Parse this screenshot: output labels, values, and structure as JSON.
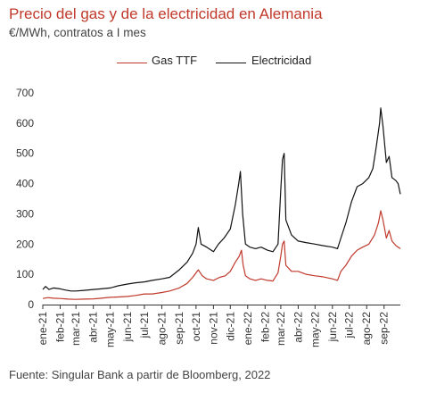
{
  "chart_data": {
    "type": "line",
    "title": "Precio del gas y de la electricidad en Alemania",
    "subtitle": "€/MWh, contratos a I mes",
    "source": "Fuente: Singular Bank a partir de Bloomberg, 2022",
    "ylim": [
      0,
      700
    ],
    "y_ticks": [
      0,
      100,
      200,
      300,
      400,
      500,
      600,
      700
    ],
    "x_start": "2021-01-01",
    "x_end": "2022-09-30",
    "x_ticks": [
      {
        "label": "ene-21",
        "date": "2021-01-01"
      },
      {
        "label": "feb-21",
        "date": "2021-02-01"
      },
      {
        "label": "mar-21",
        "date": "2021-03-01"
      },
      {
        "label": "abr-21",
        "date": "2021-04-01"
      },
      {
        "label": "may-21",
        "date": "2021-05-01"
      },
      {
        "label": "jun-21",
        "date": "2021-06-01"
      },
      {
        "label": "jul-21",
        "date": "2021-07-01"
      },
      {
        "label": "ago-21",
        "date": "2021-08-01"
      },
      {
        "label": "sep-21",
        "date": "2021-09-01"
      },
      {
        "label": "oct-21",
        "date": "2021-10-01"
      },
      {
        "label": "nov-21",
        "date": "2021-11-01"
      },
      {
        "label": "dic-21",
        "date": "2021-12-01"
      },
      {
        "label": "ene-22",
        "date": "2022-01-01"
      },
      {
        "label": "feb-22",
        "date": "2022-02-01"
      },
      {
        "label": "mar-22",
        "date": "2022-03-01"
      },
      {
        "label": "abr-22",
        "date": "2022-04-01"
      },
      {
        "label": "may-22",
        "date": "2022-05-01"
      },
      {
        "label": "jun-22",
        "date": "2022-06-01"
      },
      {
        "label": "jul-22",
        "date": "2022-07-01"
      },
      {
        "label": "ago-22",
        "date": "2022-08-01"
      },
      {
        "label": "sep-22",
        "date": "2022-09-01"
      }
    ],
    "legend_position": "top-center",
    "grid": false,
    "series": [
      {
        "name": "Gas TTF",
        "color": "#c0392b",
        "points": [
          [
            "2021-01-01",
            20
          ],
          [
            "2021-01-10",
            23
          ],
          [
            "2021-01-20",
            21
          ],
          [
            "2021-02-01",
            20
          ],
          [
            "2021-02-15",
            18
          ],
          [
            "2021-03-01",
            17
          ],
          [
            "2021-03-15",
            18
          ],
          [
            "2021-04-01",
            19
          ],
          [
            "2021-04-15",
            21
          ],
          [
            "2021-05-01",
            24
          ],
          [
            "2021-05-15",
            25
          ],
          [
            "2021-06-01",
            27
          ],
          [
            "2021-06-15",
            30
          ],
          [
            "2021-07-01",
            35
          ],
          [
            "2021-07-15",
            35
          ],
          [
            "2021-08-01",
            40
          ],
          [
            "2021-08-15",
            45
          ],
          [
            "2021-09-01",
            55
          ],
          [
            "2021-09-15",
            70
          ],
          [
            "2021-09-25",
            90
          ],
          [
            "2021-10-05",
            115
          ],
          [
            "2021-10-12",
            95
          ],
          [
            "2021-10-20",
            85
          ],
          [
            "2021-11-01",
            80
          ],
          [
            "2021-11-12",
            90
          ],
          [
            "2021-11-22",
            95
          ],
          [
            "2021-12-01",
            110
          ],
          [
            "2021-12-10",
            140
          ],
          [
            "2021-12-17",
            160
          ],
          [
            "2021-12-21",
            180
          ],
          [
            "2021-12-24",
            130
          ],
          [
            "2021-12-28",
            95
          ],
          [
            "2022-01-05",
            85
          ],
          [
            "2022-01-15",
            80
          ],
          [
            "2022-01-25",
            85
          ],
          [
            "2022-02-05",
            80
          ],
          [
            "2022-02-15",
            78
          ],
          [
            "2022-02-24",
            105
          ],
          [
            "2022-03-01",
            160
          ],
          [
            "2022-03-04",
            200
          ],
          [
            "2022-03-07",
            210
          ],
          [
            "2022-03-10",
            130
          ],
          [
            "2022-03-20",
            110
          ],
          [
            "2022-04-01",
            110
          ],
          [
            "2022-04-15",
            100
          ],
          [
            "2022-05-01",
            95
          ],
          [
            "2022-05-15",
            92
          ],
          [
            "2022-06-01",
            85
          ],
          [
            "2022-06-10",
            80
          ],
          [
            "2022-06-16",
            110
          ],
          [
            "2022-06-25",
            130
          ],
          [
            "2022-07-05",
            160
          ],
          [
            "2022-07-15",
            180
          ],
          [
            "2022-07-25",
            190
          ],
          [
            "2022-08-05",
            200
          ],
          [
            "2022-08-15",
            230
          ],
          [
            "2022-08-22",
            270
          ],
          [
            "2022-08-26",
            310
          ],
          [
            "2022-08-30",
            280
          ],
          [
            "2022-09-05",
            220
          ],
          [
            "2022-09-10",
            245
          ],
          [
            "2022-09-15",
            210
          ],
          [
            "2022-09-22",
            195
          ],
          [
            "2022-09-30",
            185
          ]
        ]
      },
      {
        "name": "Electricidad",
        "color": "#111111",
        "points": [
          [
            "2021-01-01",
            50
          ],
          [
            "2021-01-06",
            60
          ],
          [
            "2021-01-12",
            50
          ],
          [
            "2021-01-20",
            55
          ],
          [
            "2021-02-01",
            52
          ],
          [
            "2021-02-10",
            48
          ],
          [
            "2021-02-20",
            45
          ],
          [
            "2021-03-01",
            45
          ],
          [
            "2021-03-15",
            47
          ],
          [
            "2021-04-01",
            50
          ],
          [
            "2021-04-15",
            52
          ],
          [
            "2021-05-01",
            55
          ],
          [
            "2021-05-15",
            62
          ],
          [
            "2021-06-01",
            68
          ],
          [
            "2021-06-15",
            72
          ],
          [
            "2021-07-01",
            75
          ],
          [
            "2021-07-15",
            80
          ],
          [
            "2021-08-01",
            85
          ],
          [
            "2021-08-15",
            90
          ],
          [
            "2021-09-01",
            115
          ],
          [
            "2021-09-15",
            140
          ],
          [
            "2021-09-25",
            170
          ],
          [
            "2021-10-01",
            200
          ],
          [
            "2021-10-05",
            255
          ],
          [
            "2021-10-10",
            200
          ],
          [
            "2021-10-20",
            190
          ],
          [
            "2021-11-01",
            175
          ],
          [
            "2021-11-10",
            200
          ],
          [
            "2021-11-20",
            220
          ],
          [
            "2021-12-01",
            250
          ],
          [
            "2021-12-10",
            330
          ],
          [
            "2021-12-16",
            400
          ],
          [
            "2021-12-19",
            440
          ],
          [
            "2021-12-23",
            300
          ],
          [
            "2021-12-28",
            200
          ],
          [
            "2022-01-05",
            190
          ],
          [
            "2022-01-15",
            185
          ],
          [
            "2022-01-25",
            190
          ],
          [
            "2022-02-05",
            180
          ],
          [
            "2022-02-15",
            175
          ],
          [
            "2022-02-24",
            200
          ],
          [
            "2022-03-01",
            380
          ],
          [
            "2022-03-04",
            480
          ],
          [
            "2022-03-07",
            500
          ],
          [
            "2022-03-10",
            280
          ],
          [
            "2022-03-20",
            230
          ],
          [
            "2022-04-01",
            210
          ],
          [
            "2022-04-15",
            205
          ],
          [
            "2022-05-01",
            200
          ],
          [
            "2022-05-15",
            195
          ],
          [
            "2022-06-01",
            190
          ],
          [
            "2022-06-10",
            185
          ],
          [
            "2022-06-16",
            220
          ],
          [
            "2022-06-25",
            270
          ],
          [
            "2022-07-05",
            340
          ],
          [
            "2022-07-15",
            390
          ],
          [
            "2022-07-25",
            400
          ],
          [
            "2022-08-05",
            420
          ],
          [
            "2022-08-12",
            450
          ],
          [
            "2022-08-18",
            520
          ],
          [
            "2022-08-24",
            600
          ],
          [
            "2022-08-26",
            650
          ],
          [
            "2022-08-30",
            590
          ],
          [
            "2022-09-05",
            470
          ],
          [
            "2022-09-10",
            490
          ],
          [
            "2022-09-15",
            420
          ],
          [
            "2022-09-22",
            410
          ],
          [
            "2022-09-26",
            400
          ],
          [
            "2022-09-30",
            365
          ]
        ]
      }
    ]
  }
}
